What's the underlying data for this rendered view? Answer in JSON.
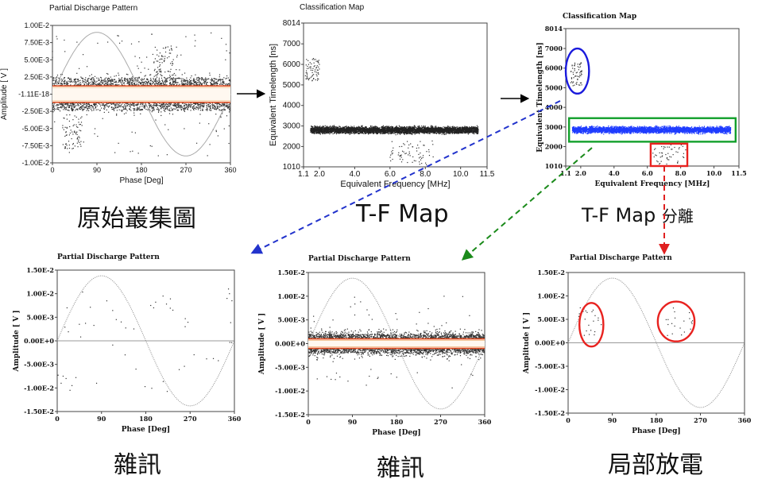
{
  "colors": {
    "point": "#333333",
    "sine": "#9a9a9a",
    "band_edge": "#e24a1f",
    "band_fill": "#f2c79a",
    "blue_cluster": "#1f3cff",
    "circle_blue": "#1a1adc",
    "box_green": "#12a02b",
    "box_red": "#e8221f",
    "arrow_blue": "#2233cc",
    "arrow_green": "#1a8a1a",
    "arrow_red": "#e02020"
  },
  "captions": {
    "original": "原始叢集圖",
    "tf_map": "T-F Map",
    "tf_map_sep": "T-F Map",
    "tf_map_sep_suffix": "分離",
    "noise1": "雜訊",
    "noise2": "雜訊",
    "pd": "局部放電"
  },
  "chart_data": [
    {
      "id": "prpd-original",
      "type": "scatter",
      "title": "Partial Discharge Pattern",
      "xlabel": "Phase [Deg]",
      "ylabel": "Amplitude [ V ]",
      "xlim": [
        0,
        360
      ],
      "ylim": [
        -0.01,
        0.01
      ],
      "xticks": [
        0,
        90,
        180,
        270,
        360
      ],
      "xtick_labels": [
        "0",
        "90",
        "180",
        "270",
        "360"
      ],
      "yticks": [
        0.01,
        0.0075,
        0.005,
        0.0025,
        0,
        -0.0025,
        -0.005,
        -0.0075,
        -0.01
      ],
      "ytick_labels": [
        "1.00E-2",
        "7.50E-3",
        "5.00E-3",
        "2.50E-3",
        "-1.11E-18",
        "-2.50E-3",
        "-5.00E-3",
        "-7.50E-3",
        "-1.00E-2"
      ],
      "reference_sine_amplitude": 0.009,
      "noise_band": [
        -0.0012,
        0.0012
      ],
      "point_density": "dense noise spread across all phases, plus clusters near 30-60 deg and 210-240 deg"
    },
    {
      "id": "tf-map",
      "type": "scatter",
      "title": "Classification Map",
      "xlabel": "Equivalent Frequency [MHz]",
      "ylabel": "Equivalent Timelength [ns]",
      "xlim": [
        1.1,
        11.5
      ],
      "ylim": [
        1010,
        8014
      ],
      "xticks": [
        1.1,
        2.0,
        4.0,
        6.0,
        8.0,
        10.0,
        11.5
      ],
      "xtick_labels": [
        "1.1",
        "2.0",
        "4.0",
        "6.0",
        "8.0",
        "10.0",
        "11.5"
      ],
      "yticks": [
        1010,
        2000,
        3000,
        4000,
        5000,
        6000,
        7000,
        8014
      ],
      "ytick_labels": [
        "1010",
        "2000",
        "3000",
        "4000",
        "5000",
        "6000",
        "7000",
        "8014"
      ],
      "clusters": [
        {
          "x_range": [
            1.2,
            2.0
          ],
          "y_range": [
            5200,
            6300
          ]
        },
        {
          "x_range": [
            1.5,
            11.0
          ],
          "y_range": [
            2500,
            3100
          ]
        },
        {
          "x_range": [
            6.0,
            8.5
          ],
          "y_range": [
            1100,
            2300
          ]
        }
      ]
    },
    {
      "id": "tf-map-separated",
      "type": "scatter",
      "title": "Classification Map",
      "xlabel": "Equivalent Frequency [MHz]",
      "ylabel": "Equivalent Timelength [ns]",
      "xlim": [
        1.1,
        11.5
      ],
      "ylim": [
        1010,
        8014
      ],
      "xticks": [
        1.1,
        2.0,
        4.0,
        6.0,
        8.0,
        10.0,
        11.5
      ],
      "xtick_labels": [
        "1.1",
        "2.0",
        "4.0",
        "6.0",
        "8.0",
        "10.0",
        "11.5"
      ],
      "yticks": [
        1010,
        2000,
        3000,
        4000,
        5000,
        6000,
        7000,
        8014
      ],
      "ytick_labels": [
        "1010",
        "2000",
        "3000",
        "4000",
        "5000",
        "6000",
        "7000",
        "8014"
      ],
      "selections": [
        {
          "shape": "ellipse",
          "color": "blue",
          "x_range": [
            1.1,
            2.5
          ],
          "y_range": [
            4700,
            7000
          ]
        },
        {
          "shape": "rect",
          "color": "green",
          "x_range": [
            1.3,
            11.3
          ],
          "y_range": [
            2250,
            3450
          ]
        },
        {
          "shape": "rect",
          "color": "red",
          "x_range": [
            6.2,
            8.4
          ],
          "y_range": [
            1010,
            2150
          ]
        }
      ]
    },
    {
      "id": "prpd-noise-1",
      "type": "scatter",
      "title": "Partial Discharge Pattern",
      "xlabel": "Phase [Deg]",
      "ylabel": "Amplitude [ V ]",
      "xlim": [
        0,
        360
      ],
      "ylim": [
        -0.015,
        0.015
      ],
      "xticks": [
        0,
        90,
        180,
        270,
        360
      ],
      "xtick_labels": [
        "0",
        "90",
        "180",
        "270",
        "360"
      ],
      "yticks": [
        0.015,
        0.01,
        0.005,
        0,
        -0.005,
        -0.01,
        -0.015
      ],
      "ytick_labels": [
        "1.50E-2",
        "1.00E-2",
        "5.00E-3",
        "0.00E+0",
        "-5.00E-3",
        "-1.00E-2",
        "-1.50E-2"
      ],
      "reference_sine_amplitude": 0.0138,
      "point_density": "sparse points near 0-40 deg, 190-230 deg and 340-360 deg"
    },
    {
      "id": "prpd-noise-2",
      "type": "scatter",
      "title": "Partial Discharge Pattern",
      "xlabel": "Phase [Deg]",
      "ylabel": "Amplitude [ V ]",
      "xlim": [
        0,
        360
      ],
      "ylim": [
        -0.015,
        0.015
      ],
      "xticks": [
        0,
        90,
        180,
        270,
        360
      ],
      "xtick_labels": [
        "0",
        "90",
        "180",
        "270",
        "360"
      ],
      "yticks": [
        0.015,
        0.01,
        0.005,
        0,
        -0.005,
        -0.01,
        -0.015
      ],
      "ytick_labels": [
        "1.50E-2",
        "1.00E-2",
        "5.00E-3",
        "0.00E+0",
        "-5.00E-3",
        "-1.00E-2",
        "-1.50E-2"
      ],
      "reference_sine_amplitude": 0.0138,
      "noise_band": [
        -0.001,
        0.001
      ],
      "point_density": "dense noise band around zero across all phases"
    },
    {
      "id": "prpd-pd",
      "type": "scatter",
      "title": "Partial Discharge Pattern",
      "xlabel": "Phase [Deg]",
      "ylabel": "Amplitude [ V ]",
      "xlim": [
        0,
        360
      ],
      "ylim": [
        -0.015,
        0.015
      ],
      "xticks": [
        0,
        90,
        180,
        270,
        360
      ],
      "xtick_labels": [
        "0",
        "90",
        "180",
        "270",
        "360"
      ],
      "yticks": [
        0.015,
        0.01,
        0.005,
        0,
        -0.005,
        -0.01,
        -0.015
      ],
      "ytick_labels": [
        "1.50E-2",
        "1.00E-2",
        "5.00E-3",
        "0.00E+0",
        "-5.00E-3",
        "-1.00E-2",
        "-1.50E-2"
      ],
      "reference_sine_amplitude": 0.0138,
      "pd_clusters": [
        {
          "phase_range": [
            20,
            70
          ],
          "amp_range": [
            0.001,
            0.0075
          ]
        },
        {
          "phase_range": [
            200,
            255
          ],
          "amp_range": [
            0.0015,
            0.0075
          ]
        }
      ]
    }
  ]
}
